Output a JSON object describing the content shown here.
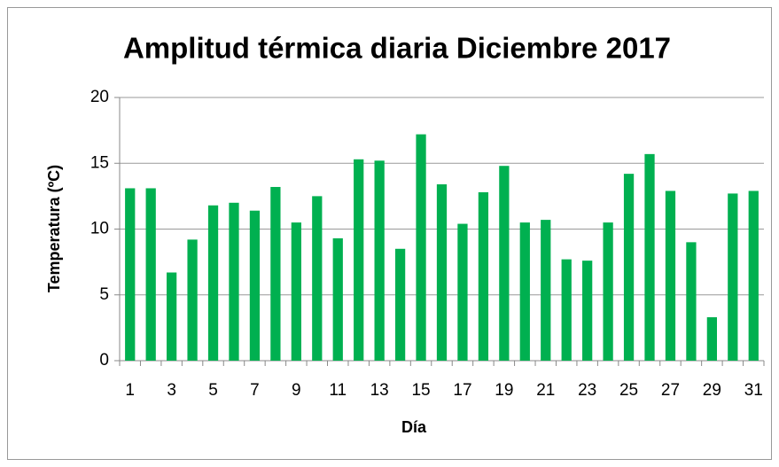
{
  "chart_data": {
    "type": "bar",
    "title": "Amplitud térmica diaria Diciembre 2017",
    "x_label": "Día",
    "y_label": "Temperatura (ºC)",
    "categories": [
      "1",
      null,
      "3",
      null,
      "5",
      null,
      "7",
      null,
      "9",
      null,
      "11",
      null,
      "13",
      null,
      "15",
      null,
      "17",
      null,
      "19",
      null,
      "21",
      null,
      "23",
      null,
      "25",
      null,
      "27",
      null,
      "29",
      null,
      "31"
    ],
    "values": [
      13.1,
      13.1,
      6.7,
      9.2,
      11.8,
      12.0,
      11.4,
      13.2,
      10.5,
      12.5,
      9.3,
      15.3,
      15.2,
      8.5,
      17.2,
      13.4,
      10.4,
      12.8,
      14.8,
      10.5,
      10.7,
      7.7,
      7.6,
      10.5,
      14.2,
      15.7,
      12.9,
      9.0,
      3.3,
      12.7,
      12.9
    ],
    "color": "#00b050",
    "ylim": [
      0,
      20
    ],
    "yticks": [
      0,
      5,
      10,
      15,
      20
    ],
    "grid": true
  }
}
